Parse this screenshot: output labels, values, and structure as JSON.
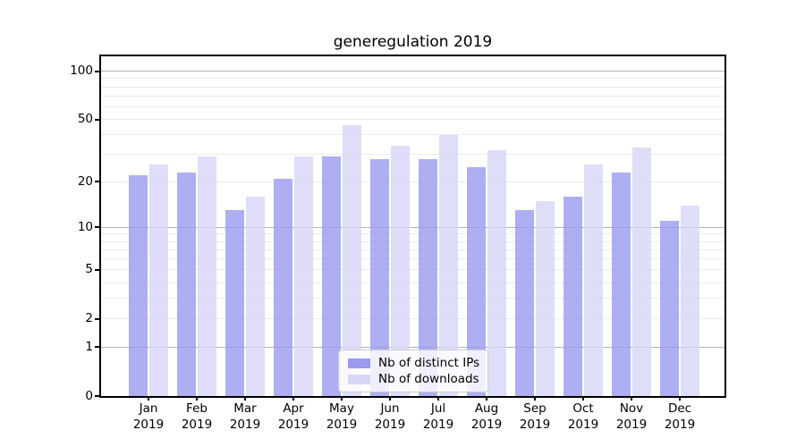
{
  "title": "generegulation 2019",
  "chart_data": {
    "type": "bar",
    "categories": [
      "Jan",
      "Feb",
      "Mar",
      "Apr",
      "May",
      "Jun",
      "Jul",
      "Aug",
      "Sep",
      "Oct",
      "Nov",
      "Dec"
    ],
    "year_label": "2019",
    "series": [
      {
        "name": "Nb of distinct IPs",
        "color": "#9a9af0",
        "values": [
          22,
          23,
          13,
          21,
          29,
          28,
          28,
          25,
          13,
          16,
          23,
          11
        ]
      },
      {
        "name": "Nb of downloads",
        "color": "#d6d6f7",
        "values": [
          26,
          29,
          16,
          29,
          46,
          34,
          40,
          32,
          15,
          26,
          33,
          14
        ]
      }
    ],
    "xlabel": "",
    "ylabel": "",
    "yscale": "log1p",
    "ylim": [
      0,
      124
    ],
    "y_ticks": [
      100,
      50,
      20,
      10,
      5,
      2,
      1,
      0
    ],
    "y_major_gridlines": [
      1,
      10,
      100
    ],
    "y_minor_gridlines": [
      2,
      3,
      4,
      5,
      6,
      7,
      8,
      9,
      20,
      30,
      40,
      50,
      60,
      70,
      80,
      90
    ],
    "grid": true,
    "bar_opacity": 0.8,
    "legend": {
      "position": "lower center",
      "entries": [
        "Nb of distinct IPs",
        "Nb of downloads"
      ]
    },
    "colors": {
      "major_grid": "#b3b3b3",
      "minor_grid": "#ebebeb",
      "spine": "#000000",
      "legend_border": "#cccccc",
      "background": "#ffffff"
    }
  }
}
